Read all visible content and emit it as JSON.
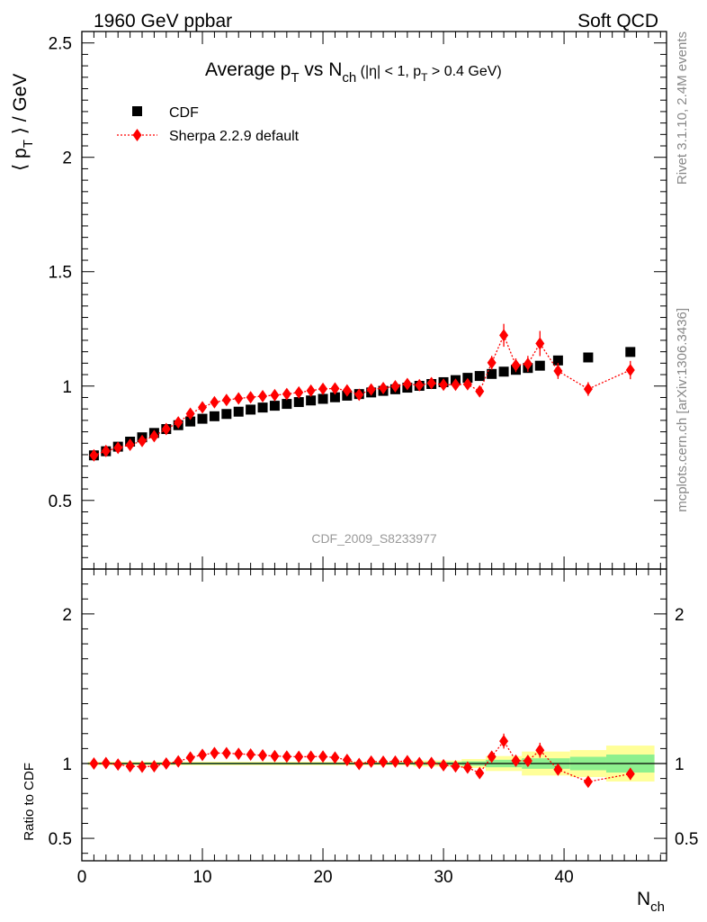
{
  "header": {
    "left": "1960 GeV ppbar",
    "right": "Soft QCD"
  },
  "side": {
    "rivet": "Rivet 3.1.10,  2.4M events",
    "mcplots": "mcplots.cern.ch [arXiv:1306.3436]"
  },
  "chart_data": {
    "type": "scatter",
    "title": {
      "main": "Average p",
      "main_sub": "T",
      "mid": " vs N",
      "mid_sub": "ch",
      "cuts_a": " (|η| < 1, p",
      "cuts_sub": "T",
      "cuts_b": " > 0.4 GeV)"
    },
    "analysis_tag": "CDF_2009_S8233977",
    "ylabel": {
      "pre": "⟨ p",
      "sub": "T",
      "post": " ⟩ / GeV"
    },
    "xlabel": {
      "main": "N",
      "sub": "ch"
    },
    "ratio_ylabel": "Ratio to CDF",
    "xlim": [
      0,
      48.5
    ],
    "ylim_main": [
      0.2,
      2.55
    ],
    "ylim_ratio": [
      0.35,
      2.3
    ],
    "x_ticks": [
      "0",
      "10",
      "20",
      "30",
      "40"
    ],
    "y_ticks_main": [
      "0.5",
      "1",
      "1.5",
      "2",
      "2.5"
    ],
    "y_ticks_ratio": [
      "0.5",
      "1",
      "2"
    ],
    "legend": {
      "position": "top-left"
    },
    "series": [
      {
        "name": "CDF",
        "color": "#000000",
        "marker": "square",
        "points": [
          [
            1,
            0.697
          ],
          [
            2,
            0.715
          ],
          [
            3,
            0.735
          ],
          [
            4,
            0.757
          ],
          [
            5,
            0.776
          ],
          [
            6,
            0.795
          ],
          [
            7,
            0.812
          ],
          [
            8,
            0.829
          ],
          [
            9,
            0.845
          ],
          [
            10,
            0.857
          ],
          [
            11,
            0.868
          ],
          [
            12,
            0.878
          ],
          [
            13,
            0.888
          ],
          [
            14,
            0.897
          ],
          [
            15,
            0.906
          ],
          [
            16,
            0.914
          ],
          [
            17,
            0.922
          ],
          [
            18,
            0.93
          ],
          [
            19,
            0.937
          ],
          [
            20,
            0.944
          ],
          [
            21,
            0.951
          ],
          [
            22,
            0.958
          ],
          [
            23,
            0.965
          ],
          [
            24,
            0.972
          ],
          [
            25,
            0.979
          ],
          [
            26,
            0.986
          ],
          [
            27,
            0.993
          ],
          [
            28,
            1.001
          ],
          [
            29,
            1.009
          ],
          [
            30,
            1.017
          ],
          [
            31,
            1.026
          ],
          [
            32,
            1.036
          ],
          [
            33,
            1.044
          ],
          [
            34,
            1.053
          ],
          [
            35,
            1.063
          ],
          [
            36,
            1.071
          ],
          [
            37,
            1.079
          ],
          [
            38,
            1.089
          ],
          [
            39.5,
            1.112
          ],
          [
            42,
            1.125
          ],
          [
            45.5,
            1.149
          ]
        ]
      },
      {
        "name": "Sherpa 2.2.9 default",
        "color": "#ff0000",
        "marker": "diamond",
        "line": "dotted",
        "points": [
          [
            1,
            0.697
          ],
          [
            2,
            0.716
          ],
          [
            3,
            0.73
          ],
          [
            4,
            0.743
          ],
          [
            5,
            0.76
          ],
          [
            6,
            0.781
          ],
          [
            7,
            0.812
          ],
          [
            8,
            0.841
          ],
          [
            9,
            0.879
          ],
          [
            10,
            0.907
          ],
          [
            11,
            0.929
          ],
          [
            12,
            0.939
          ],
          [
            13,
            0.946
          ],
          [
            14,
            0.951
          ],
          [
            15,
            0.956
          ],
          [
            16,
            0.96
          ],
          [
            17,
            0.965
          ],
          [
            18,
            0.972
          ],
          [
            19,
            0.98
          ],
          [
            20,
            0.988
          ],
          [
            21,
            0.989
          ],
          [
            22,
            0.981
          ],
          [
            23,
            0.962
          ],
          [
            24,
            0.985
          ],
          [
            25,
            0.991
          ],
          [
            26,
            0.999
          ],
          [
            27,
            1.009
          ],
          [
            28,
            1.004
          ],
          [
            29,
            1.013
          ],
          [
            30,
            1.006
          ],
          [
            31,
            1.006
          ],
          [
            32,
            1.008
          ],
          [
            33,
            0.977
          ],
          [
            34,
            1.102
          ],
          [
            35,
            1.222
          ],
          [
            36,
            1.091
          ],
          [
            37,
            1.097
          ],
          [
            38,
            1.186
          ],
          [
            39.5,
            1.066
          ],
          [
            42,
            0.987
          ],
          [
            45.5,
            1.07
          ]
        ],
        "errors": [
          0.006,
          0.006,
          0.006,
          0.006,
          0.006,
          0.006,
          0.006,
          0.006,
          0.006,
          0.007,
          0.007,
          0.007,
          0.007,
          0.007,
          0.007,
          0.007,
          0.008,
          0.008,
          0.008,
          0.008,
          0.009,
          0.009,
          0.009,
          0.01,
          0.01,
          0.011,
          0.011,
          0.012,
          0.013,
          0.014,
          0.015,
          0.017,
          0.02,
          0.03,
          0.05,
          0.03,
          0.035,
          0.055,
          0.035,
          0.03,
          0.04
        ],
        "ratio": [
          1.0,
          1.003,
          0.993,
          0.982,
          0.979,
          0.982,
          1.0,
          1.014,
          1.04,
          1.058,
          1.07,
          1.069,
          1.065,
          1.06,
          1.055,
          1.05,
          1.047,
          1.045,
          1.046,
          1.047,
          1.04,
          1.024,
          0.997,
          1.013,
          1.012,
          1.013,
          1.016,
          1.003,
          1.004,
          0.989,
          0.981,
          0.973,
          0.936,
          1.046,
          1.15,
          1.019,
          1.017,
          1.089,
          0.959,
          0.878,
          0.931
        ],
        "ratio_errors": [
          0.01,
          0.01,
          0.01,
          0.01,
          0.01,
          0.01,
          0.01,
          0.01,
          0.01,
          0.01,
          0.01,
          0.01,
          0.01,
          0.01,
          0.01,
          0.01,
          0.01,
          0.01,
          0.01,
          0.01,
          0.01,
          0.01,
          0.01,
          0.01,
          0.01,
          0.01,
          0.01,
          0.012,
          0.013,
          0.014,
          0.015,
          0.016,
          0.02,
          0.03,
          0.05,
          0.03,
          0.035,
          0.05,
          0.035,
          0.03,
          0.04
        ]
      }
    ],
    "ratio_band": {
      "inner_color": "#8ef08e",
      "outer_color": "#ffff99",
      "bins": [
        [
          0.5,
          27.5,
          0.006,
          0.012
        ],
        [
          27.5,
          31.5,
          0.01,
          0.02
        ],
        [
          31.5,
          33.5,
          0.015,
          0.03
        ],
        [
          33.5,
          36.5,
          0.025,
          0.05
        ],
        [
          36.5,
          40.5,
          0.035,
          0.08
        ],
        [
          40.5,
          43.5,
          0.045,
          0.09
        ],
        [
          43.5,
          47.5,
          0.06,
          0.12
        ]
      ]
    }
  }
}
